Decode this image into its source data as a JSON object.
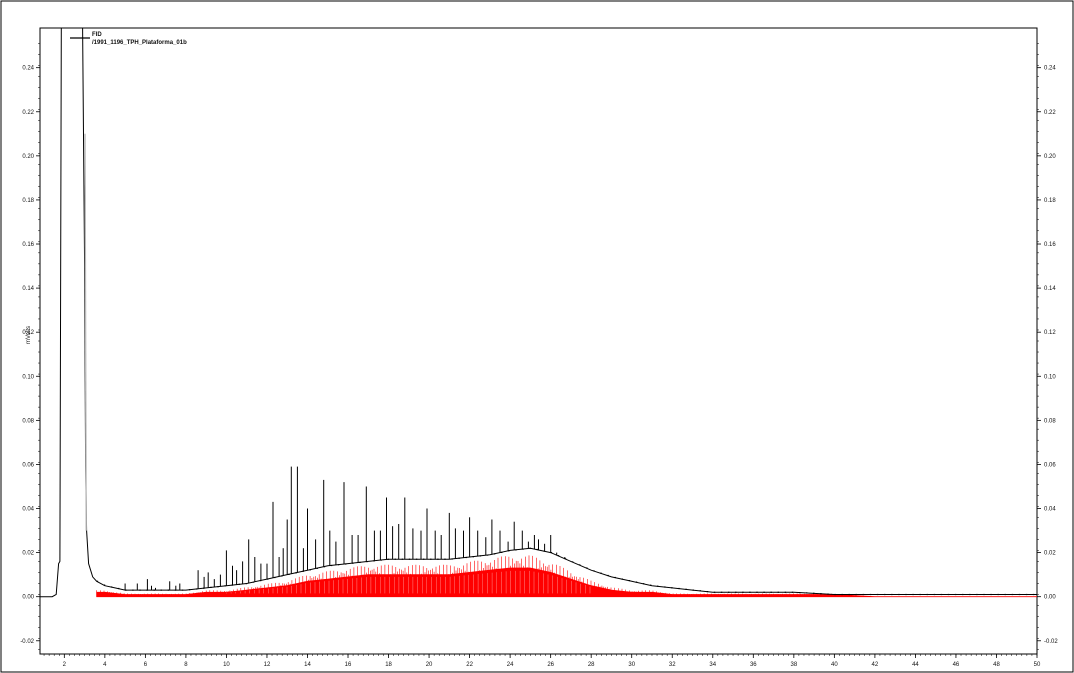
{
  "chart_data": {
    "type": "line",
    "title": "",
    "xlabel": "",
    "ylabel": "mVolts",
    "xlim": [
      0.8,
      50
    ],
    "ylim": [
      -0.026,
      0.258
    ],
    "x_ticks": [
      2,
      4,
      6,
      8,
      10,
      12,
      14,
      16,
      18,
      20,
      22,
      24,
      26,
      28,
      30,
      32,
      34,
      36,
      38,
      40,
      42,
      44,
      46,
      48,
      50
    ],
    "y_ticks_left": [
      -0.02,
      0.0,
      0.02,
      0.04,
      0.06,
      0.08,
      0.1,
      0.12,
      0.14,
      0.16,
      0.18,
      0.2,
      0.22,
      0.24
    ],
    "y_ticks_right": [
      -0.02,
      0.0,
      0.02,
      0.04,
      0.06,
      0.08,
      0.1,
      0.12,
      0.14,
      0.16,
      0.18,
      0.2,
      0.22,
      0.24
    ],
    "grid": false,
    "legend": {
      "placement": "top-left",
      "entries": [
        "FID",
        "/1991_1196_TPH_Plataforma_01b"
      ]
    },
    "series": [
      {
        "name": "FID",
        "color": "#000000",
        "points": [
          [
            0.8,
            0.0
          ],
          [
            1.4,
            0.0
          ],
          [
            1.6,
            0.001
          ],
          [
            1.72,
            0.015
          ],
          [
            1.78,
            0.016
          ],
          [
            1.85,
            0.258
          ],
          [
            2.9,
            0.258
          ],
          [
            3.0,
            0.15
          ],
          [
            3.05,
            0.06
          ],
          [
            3.1,
            0.03
          ],
          [
            3.2,
            0.015
          ],
          [
            3.4,
            0.009
          ],
          [
            3.6,
            0.007
          ],
          [
            4.0,
            0.005
          ],
          [
            4.5,
            0.004
          ],
          [
            5.0,
            0.003
          ],
          [
            5.5,
            0.003
          ],
          [
            6.0,
            0.003
          ],
          [
            7.0,
            0.003
          ],
          [
            8.0,
            0.003
          ],
          [
            9.0,
            0.004
          ],
          [
            10.0,
            0.005
          ],
          [
            11.0,
            0.006
          ],
          [
            12.0,
            0.008
          ],
          [
            13.0,
            0.01
          ],
          [
            14.0,
            0.012
          ],
          [
            15.0,
            0.014
          ],
          [
            16.0,
            0.015
          ],
          [
            17.0,
            0.016
          ],
          [
            18.0,
            0.017
          ],
          [
            19.0,
            0.017
          ],
          [
            20.0,
            0.017
          ],
          [
            21.0,
            0.017
          ],
          [
            22.0,
            0.018
          ],
          [
            23.0,
            0.019
          ],
          [
            24.0,
            0.021
          ],
          [
            25.0,
            0.022
          ],
          [
            26.0,
            0.02
          ],
          [
            27.0,
            0.016
          ],
          [
            28.0,
            0.012
          ],
          [
            29.0,
            0.009
          ],
          [
            30.0,
            0.007
          ],
          [
            31.0,
            0.005
          ],
          [
            32.0,
            0.004
          ],
          [
            33.0,
            0.003
          ],
          [
            34.0,
            0.002
          ],
          [
            36.0,
            0.002
          ],
          [
            38.0,
            0.002
          ],
          [
            40.0,
            0.001
          ],
          [
            42.0,
            0.001
          ],
          [
            44.0,
            0.001
          ],
          [
            46.0,
            0.001
          ],
          [
            48.0,
            0.001
          ],
          [
            50.0,
            0.001
          ]
        ],
        "peaks": [
          [
            5.0,
            0.006
          ],
          [
            5.6,
            0.006
          ],
          [
            6.1,
            0.008
          ],
          [
            6.3,
            0.005
          ],
          [
            6.5,
            0.004
          ],
          [
            7.2,
            0.007
          ],
          [
            7.5,
            0.005
          ],
          [
            7.7,
            0.006
          ],
          [
            8.6,
            0.012
          ],
          [
            8.9,
            0.009
          ],
          [
            9.1,
            0.011
          ],
          [
            9.4,
            0.008
          ],
          [
            9.7,
            0.01
          ],
          [
            10.0,
            0.021
          ],
          [
            10.3,
            0.014
          ],
          [
            10.5,
            0.012
          ],
          [
            10.8,
            0.016
          ],
          [
            11.1,
            0.026
          ],
          [
            11.4,
            0.018
          ],
          [
            11.7,
            0.015
          ],
          [
            12.0,
            0.015
          ],
          [
            12.3,
            0.043
          ],
          [
            12.6,
            0.018
          ],
          [
            12.8,
            0.022
          ],
          [
            13.0,
            0.035
          ],
          [
            13.2,
            0.059
          ],
          [
            13.5,
            0.059
          ],
          [
            13.8,
            0.022
          ],
          [
            14.0,
            0.04
          ],
          [
            14.4,
            0.026
          ],
          [
            14.8,
            0.053
          ],
          [
            15.1,
            0.03
          ],
          [
            15.4,
            0.025
          ],
          [
            15.8,
            0.052
          ],
          [
            16.2,
            0.028
          ],
          [
            16.5,
            0.028
          ],
          [
            16.9,
            0.05
          ],
          [
            17.3,
            0.03
          ],
          [
            17.6,
            0.03
          ],
          [
            17.9,
            0.045
          ],
          [
            18.2,
            0.032
          ],
          [
            18.5,
            0.033
          ],
          [
            18.8,
            0.045
          ],
          [
            19.2,
            0.031
          ],
          [
            19.6,
            0.03
          ],
          [
            19.9,
            0.04
          ],
          [
            20.3,
            0.03
          ],
          [
            20.6,
            0.028
          ],
          [
            21.0,
            0.038
          ],
          [
            21.3,
            0.031
          ],
          [
            21.7,
            0.03
          ],
          [
            22.0,
            0.036
          ],
          [
            22.4,
            0.03
          ],
          [
            22.8,
            0.027
          ],
          [
            23.1,
            0.035
          ],
          [
            23.5,
            0.03
          ],
          [
            23.9,
            0.025
          ],
          [
            24.2,
            0.034
          ],
          [
            24.6,
            0.03
          ],
          [
            24.9,
            0.025
          ],
          [
            25.2,
            0.028
          ],
          [
            25.4,
            0.026
          ],
          [
            25.7,
            0.024
          ],
          [
            26.0,
            0.028
          ],
          [
            26.3,
            0.02
          ],
          [
            26.7,
            0.018
          ]
        ]
      },
      {
        "name": "/1991_1196_TPH_Plataforma_01b",
        "color": "#ff0000",
        "points": [
          [
            3.6,
            0.002
          ],
          [
            4.0,
            0.002
          ],
          [
            5.0,
            0.001
          ],
          [
            6.0,
            0.001
          ],
          [
            7.0,
            0.001
          ],
          [
            8.0,
            0.001
          ],
          [
            9.0,
            0.002
          ],
          [
            10.0,
            0.002
          ],
          [
            11.0,
            0.003
          ],
          [
            12.0,
            0.004
          ],
          [
            13.0,
            0.005
          ],
          [
            14.0,
            0.007
          ],
          [
            15.0,
            0.008
          ],
          [
            16.0,
            0.009
          ],
          [
            17.0,
            0.01
          ],
          [
            18.0,
            0.01
          ],
          [
            19.0,
            0.01
          ],
          [
            20.0,
            0.01
          ],
          [
            21.0,
            0.01
          ],
          [
            22.0,
            0.011
          ],
          [
            23.0,
            0.012
          ],
          [
            24.0,
            0.013
          ],
          [
            25.0,
            0.013
          ],
          [
            26.0,
            0.011
          ],
          [
            27.0,
            0.008
          ],
          [
            28.0,
            0.005
          ],
          [
            29.0,
            0.003
          ],
          [
            30.0,
            0.002
          ],
          [
            31.0,
            0.002
          ],
          [
            32.0,
            0.001
          ],
          [
            34.0,
            0.001
          ],
          [
            36.0,
            0.001
          ],
          [
            38.0,
            0.001
          ],
          [
            40.0,
            0.001
          ],
          [
            42.0,
            0.0
          ],
          [
            44.0,
            0.0
          ],
          [
            46.0,
            0.0
          ],
          [
            48.0,
            0.0
          ],
          [
            50.0,
            0.0
          ]
        ]
      }
    ]
  }
}
